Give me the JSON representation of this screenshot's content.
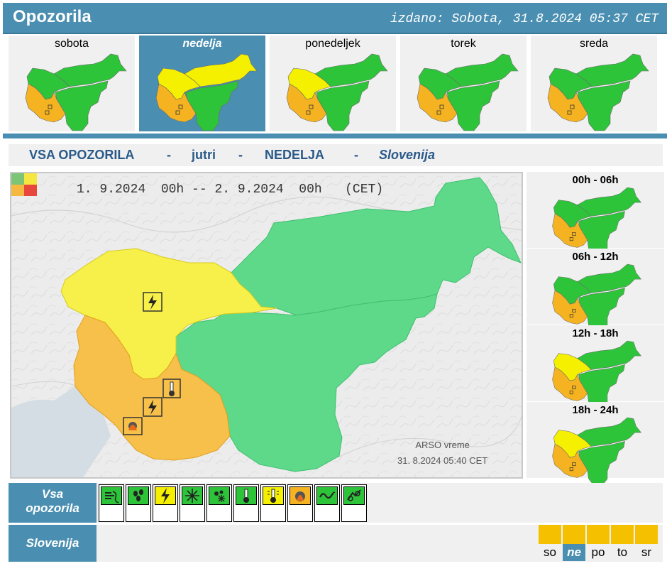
{
  "header": {
    "title": "Opozorila",
    "issued": "izdano: Sobota, 31.8.2024 05:37 CET"
  },
  "days": [
    {
      "label": "sobota",
      "active": false,
      "north": "green",
      "nw": "green",
      "sw": "orange"
    },
    {
      "label": "nedelja",
      "active": true,
      "north": "yellow",
      "nw": "yellow",
      "sw": "orange"
    },
    {
      "label": "ponedeljek",
      "active": false,
      "north": "green",
      "nw": "yellow",
      "sw": "orange"
    },
    {
      "label": "torek",
      "active": false,
      "north": "green",
      "nw": "green",
      "sw": "orange"
    },
    {
      "label": "sreda",
      "active": false,
      "north": "green",
      "nw": "green",
      "sw": "orange"
    }
  ],
  "subtitle": {
    "all": "VSA OPOZORILA",
    "dash": "-",
    "when": "jutri",
    "day": "NEDELJA",
    "region": "Slovenija"
  },
  "main_map": {
    "period_from": "1. 9.2024  00h",
    "period_sep": "--",
    "period_to": "2. 9.2024  00h",
    "timezone": "(CET)",
    "credit_line1": "ARSO vreme",
    "credit_line2": "31. 8.2024  05:40 CET",
    "legend_colors": [
      "#7cc576",
      "#f5e642",
      "#f5b942",
      "#e8473c"
    ]
  },
  "time_slots": [
    {
      "label": "00h - 06h",
      "nw": "green",
      "sw": "orange"
    },
    {
      "label": "06h - 12h",
      "nw": "green",
      "sw": "orange"
    },
    {
      "label": "12h - 18h",
      "nw": "yellow",
      "sw": "orange"
    },
    {
      "label": "18h - 24h",
      "nw": "yellow",
      "sw": "orange"
    }
  ],
  "warnings_row": {
    "label_line1": "Vsa",
    "label_line2": "opozorila",
    "icons": [
      {
        "name": "wind-icon",
        "level": "green"
      },
      {
        "name": "rain-icon",
        "level": "green"
      },
      {
        "name": "thunderstorm-icon",
        "level": "yellow"
      },
      {
        "name": "snow-icon",
        "level": "green"
      },
      {
        "name": "snow-ice-icon",
        "level": "green"
      },
      {
        "name": "cold-temperature-icon",
        "level": "green"
      },
      {
        "name": "high-temperature-icon",
        "level": "yellow"
      },
      {
        "name": "forest-fire-icon",
        "level": "orange"
      },
      {
        "name": "coastal-event-icon",
        "level": "green"
      },
      {
        "name": "flood-icon",
        "level": "green"
      }
    ]
  },
  "region_row": {
    "label": "Slovenija",
    "days": [
      {
        "label": "so",
        "active": false
      },
      {
        "label": "ne",
        "active": true
      },
      {
        "label": "po",
        "active": false
      },
      {
        "label": "to",
        "active": false
      },
      {
        "label": "sr",
        "active": false
      }
    ],
    "level_color": "#f5c000"
  },
  "colors": {
    "green": "#2ec43a",
    "yellow": "#f5f000",
    "orange": "#f5b321",
    "accent": "#4a8fb1",
    "map_green": "#5ed98a",
    "map_yellow": "#f7ef4a",
    "map_orange": "#f7c04a"
  }
}
